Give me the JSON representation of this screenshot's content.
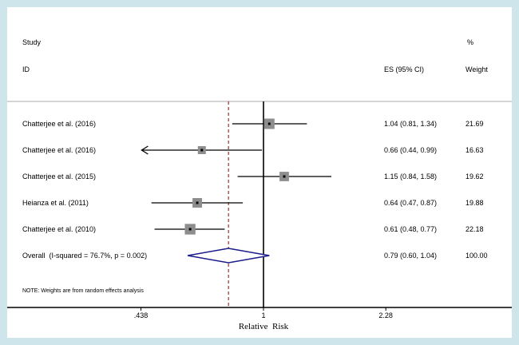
{
  "figure": {
    "background_color": "#cde5eb",
    "plot_background": "#ffffff"
  },
  "headers": {
    "study": "Study",
    "id": "ID",
    "es_ci": "ES (95% CI)",
    "percent": "%",
    "weight": "Weight"
  },
  "note": "NOTE: Weights are from random effects analysis",
  "chart_data": {
    "type": "forest",
    "xlabel": "Relative  Risk",
    "x_scale": "log",
    "x_ticks": [
      0.438,
      1,
      2.28
    ],
    "x_tick_labels": [
      ".438",
      "1",
      "2.28"
    ],
    "null_line": 1,
    "studies": [
      {
        "id": "Chatterjee et al. (2016)",
        "es": 1.04,
        "lo": 0.81,
        "hi": 1.34,
        "es_label": "1.04 (0.81, 1.34)",
        "weight": 21.69,
        "weight_label": "21.69",
        "arrow_left": false
      },
      {
        "id": "Chatterjee et al. (2016)",
        "es": 0.66,
        "lo": 0.44,
        "hi": 0.99,
        "es_label": "0.66 (0.44, 0.99)",
        "weight": 16.63,
        "weight_label": "16.63",
        "arrow_left": true
      },
      {
        "id": "Chatterjee et al. (2015)",
        "es": 1.15,
        "lo": 0.84,
        "hi": 1.58,
        "es_label": "1.15 (0.84, 1.58)",
        "weight": 19.62,
        "weight_label": "19.62",
        "arrow_left": false
      },
      {
        "id": "Heianza et al. (2011)",
        "es": 0.64,
        "lo": 0.47,
        "hi": 0.87,
        "es_label": "0.64 (0.47, 0.87)",
        "weight": 19.88,
        "weight_label": "19.88",
        "arrow_left": false
      },
      {
        "id": "Chatterjee et al. (2010)",
        "es": 0.61,
        "lo": 0.48,
        "hi": 0.77,
        "es_label": "0.61 (0.48, 0.77)",
        "weight": 22.18,
        "weight_label": "22.18",
        "arrow_left": false
      }
    ],
    "overall": {
      "id": "Overall  (I-squared = 76.7%, p = 0.002)",
      "es": 0.79,
      "lo": 0.6,
      "hi": 1.04,
      "es_label": "0.79 (0.60, 1.04)",
      "weight": 100.0,
      "weight_label": "100.00"
    },
    "colors": {
      "ci_line": "#000000",
      "marker": "#8d8d8d",
      "marker_dot": "#000000",
      "diamond": "#1b1b8a",
      "dashed_line": "#a03432",
      "axis": "#000000",
      "separator": "#a8a8a8"
    }
  }
}
